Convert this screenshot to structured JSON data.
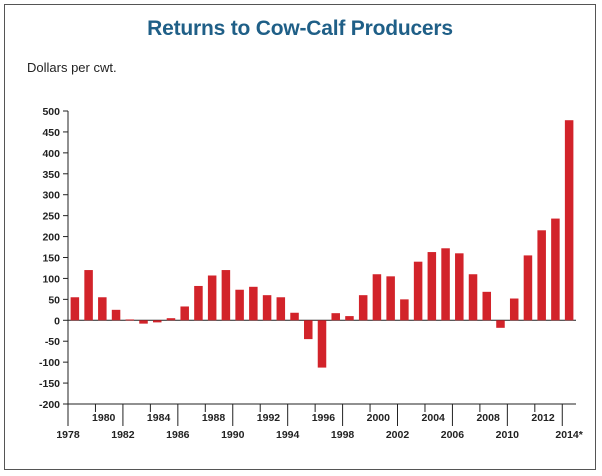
{
  "chart_data": {
    "type": "bar",
    "title": "Returns to Cow-Calf Producers",
    "ylabel": "Dollars per cwt.",
    "xlabel": "",
    "ylim": [
      -200,
      500
    ],
    "yticks": [
      500,
      450,
      400,
      350,
      300,
      250,
      200,
      150,
      100,
      50,
      0,
      -50,
      -100,
      -150,
      -200
    ],
    "grid": false,
    "bar_color": "#d2232a",
    "categories": [
      "1978",
      "1979",
      "1980",
      "1981",
      "1982",
      "1983",
      "1984",
      "1985",
      "1986",
      "1987",
      "1988",
      "1989",
      "1990",
      "1991",
      "1992",
      "1993",
      "1994",
      "1995",
      "1996",
      "1997",
      "1998",
      "1999",
      "2000",
      "2001",
      "2002",
      "2003",
      "2004",
      "2005",
      "2006",
      "2007",
      "2008",
      "2009",
      "2010",
      "2011",
      "2012",
      "2013",
      "2014*"
    ],
    "values": [
      55,
      120,
      55,
      25,
      2,
      -8,
      -5,
      5,
      33,
      82,
      107,
      120,
      73,
      80,
      60,
      55,
      18,
      -45,
      -113,
      17,
      10,
      60,
      110,
      105,
      50,
      140,
      163,
      172,
      160,
      110,
      68,
      -18,
      52,
      155,
      215,
      243,
      478
    ],
    "x_tick_labels_upper": [
      "1980",
      "1984",
      "1988",
      "1992",
      "1996",
      "2000",
      "2004",
      "2008",
      "2012"
    ],
    "x_tick_labels_lower": [
      "1978",
      "1982",
      "1986",
      "1990",
      "1994",
      "1998",
      "2002",
      "2006",
      "2010",
      "2014*"
    ]
  }
}
